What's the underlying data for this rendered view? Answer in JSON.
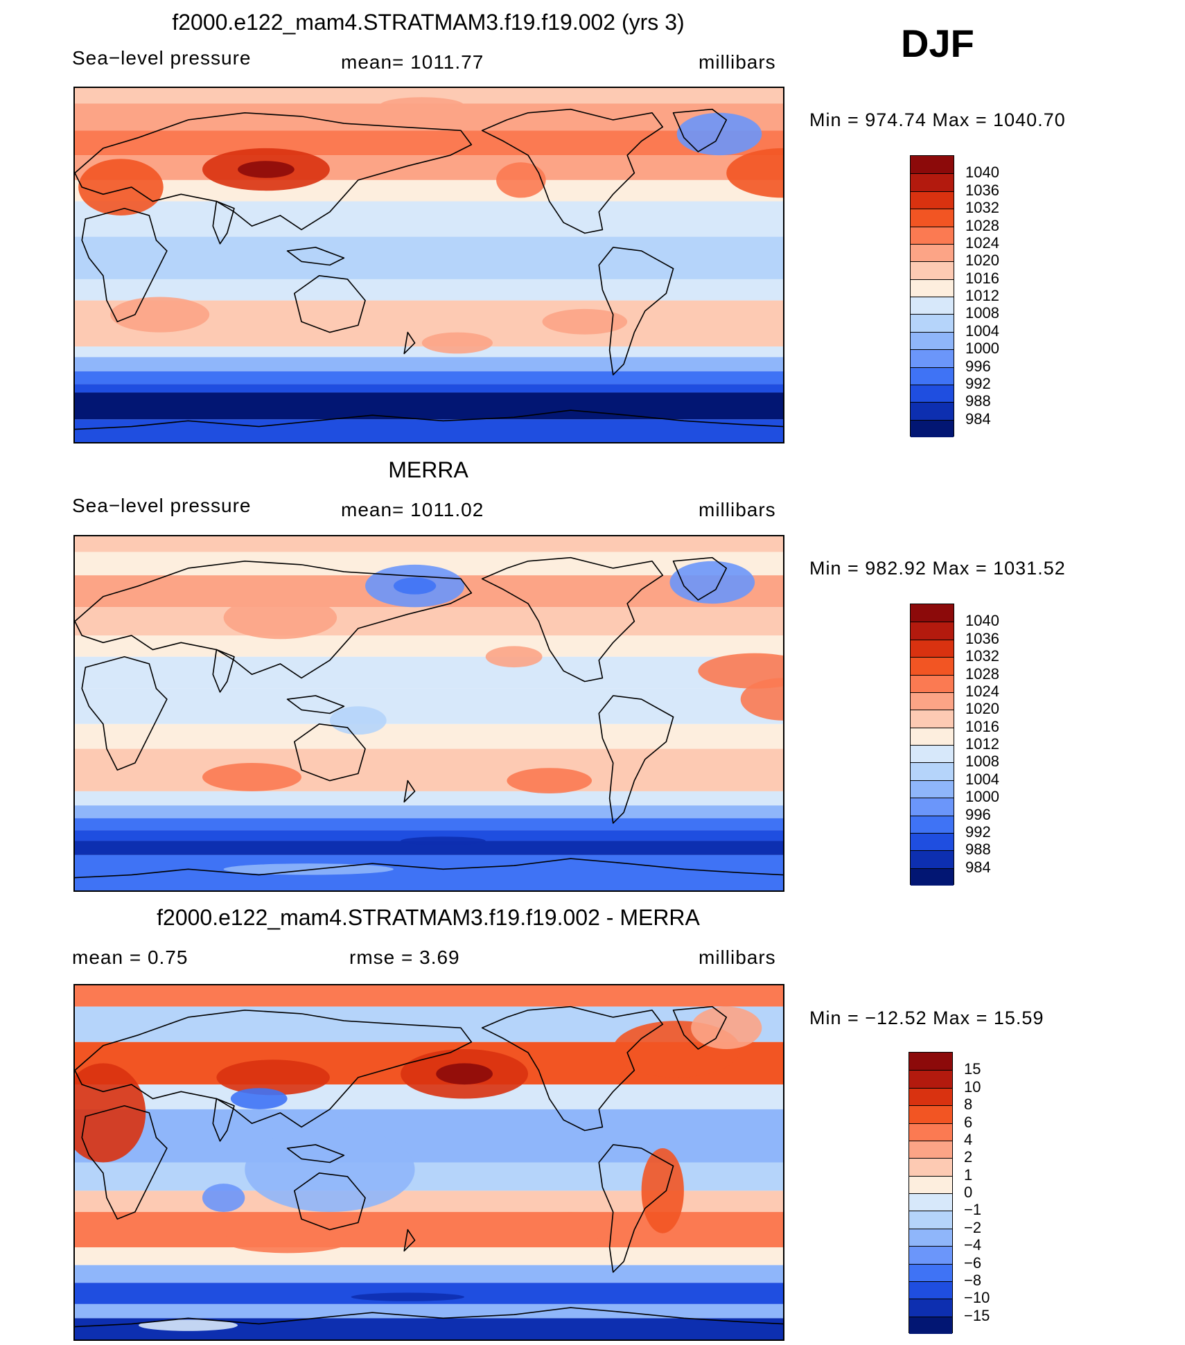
{
  "season": "DJF",
  "panels": [
    {
      "title": "f2000.e122_mam4.STRATMAM3.f19.f19.002 (yrs 3)",
      "left_label": "Sea−level pressure",
      "center_label": "mean=  1011.77",
      "right_label": "millibars",
      "minmax": "Min  =  974.74  Max  =  1040.70",
      "kind": "abs",
      "colorbar": {
        "colors": [
          "#8c0a0a",
          "#b31a0e",
          "#d93210",
          "#f25523",
          "#fb7a52",
          "#fca486",
          "#fdcab3",
          "#fdeede",
          "#d7e8fa",
          "#b5d4fa",
          "#8fb6fa",
          "#6b96fa",
          "#3f73f5",
          "#1f4ee0",
          "#0d2fb0",
          "#021673"
        ],
        "labels": [
          "1040",
          "1036",
          "1032",
          "1028",
          "1024",
          "1020",
          "1016",
          "1012",
          "1008",
          "1004",
          "1000",
          "996",
          "992",
          "988",
          "984"
        ]
      }
    },
    {
      "title": "MERRA",
      "left_label": "Sea−level pressure",
      "center_label": "mean=  1011.02",
      "right_label": "millibars",
      "minmax": "Min  =  982.92  Max  =  1031.52",
      "kind": "merra",
      "colorbar": {
        "colors": [
          "#8c0a0a",
          "#b31a0e",
          "#d93210",
          "#f25523",
          "#fb7a52",
          "#fca486",
          "#fdcab3",
          "#fdeede",
          "#d7e8fa",
          "#b5d4fa",
          "#8fb6fa",
          "#6b96fa",
          "#3f73f5",
          "#1f4ee0",
          "#0d2fb0",
          "#021673"
        ],
        "labels": [
          "1040",
          "1036",
          "1032",
          "1028",
          "1024",
          "1020",
          "1016",
          "1012",
          "1008",
          "1004",
          "1000",
          "996",
          "992",
          "988",
          "984"
        ]
      }
    },
    {
      "title": "f2000.e122_mam4.STRATMAM3.f19.f19.002 - MERRA",
      "left_label": "mean  =     0.75",
      "center_label": "rmse  =     3.69",
      "right_label": "millibars",
      "minmax": "Min  =  −12.52  Max  =    15.59",
      "kind": "diff",
      "colorbar": {
        "colors": [
          "#8c0a0a",
          "#b31a0e",
          "#d93210",
          "#f25523",
          "#fb7a52",
          "#fca486",
          "#fdcab3",
          "#fdeede",
          "#d7e8fa",
          "#b5d4fa",
          "#8fb6fa",
          "#6b96fa",
          "#3f73f5",
          "#1f4ee0",
          "#0d2fb0",
          "#021673"
        ],
        "labels": [
          "15",
          "10",
          "8",
          "6",
          "4",
          "2",
          "1",
          "0",
          "−1",
          "−2",
          "−4",
          "−6",
          "−8",
          "−10",
          "−15"
        ]
      }
    }
  ]
}
